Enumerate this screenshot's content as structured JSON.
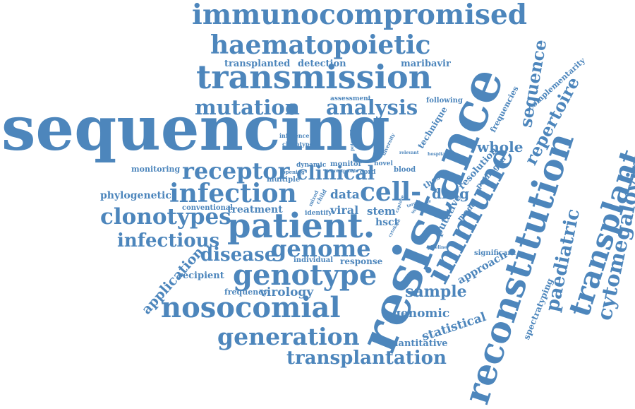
{
  "cloud": {
    "color": "#4d86bc",
    "words": [
      {
        "id": "sequencing",
        "text": "sequencing"
      },
      {
        "id": "resistance",
        "text": "resistance"
      },
      {
        "id": "immunocompromised",
        "text": "immunocompromised"
      },
      {
        "id": "haematopoietic",
        "text": "haematopoietic"
      },
      {
        "id": "transmission",
        "text": "transmission"
      },
      {
        "id": "patient",
        "text": "patient."
      },
      {
        "id": "reconstitution",
        "text": "reconstitution"
      },
      {
        "id": "immune",
        "text": "immune"
      },
      {
        "id": "transplant",
        "text": "transplant"
      },
      {
        "id": "genotype",
        "text": "genotype"
      },
      {
        "id": "nosocomial",
        "text": "nosocomial"
      },
      {
        "id": "infection",
        "text": "infection"
      },
      {
        "id": "clonotypes",
        "text": "clonotypes"
      },
      {
        "id": "genome",
        "text": "genome"
      },
      {
        "id": "cytomegalovirus",
        "text": "cytomegalovirus"
      },
      {
        "id": "generation",
        "text": "generation"
      },
      {
        "id": "transplantation",
        "text": "transplantation"
      },
      {
        "id": "mutation",
        "text": "mutation"
      },
      {
        "id": "analysis",
        "text": "analysis"
      },
      {
        "id": "receptor",
        "text": "receptor"
      },
      {
        "id": "clinical",
        "text": "clinical"
      },
      {
        "id": "cell",
        "text": "cell-"
      },
      {
        "id": "sequence",
        "text": "sequence"
      },
      {
        "id": "repertoire",
        "text": "repertoire"
      },
      {
        "id": "paediatric",
        "text": "paediatric"
      },
      {
        "id": "infectious",
        "text": "infectious"
      },
      {
        "id": "disease",
        "text": "disease"
      },
      {
        "id": "sample",
        "text": "sample"
      },
      {
        "id": "whole",
        "text": "whole"
      },
      {
        "id": "application",
        "text": "application"
      },
      {
        "id": "virology",
        "text": "virology"
      },
      {
        "id": "genomic",
        "text": "genomic"
      },
      {
        "id": "statistical",
        "text": "statistical"
      },
      {
        "id": "approach",
        "text": "approach"
      },
      {
        "id": "drug",
        "text": "drug"
      },
      {
        "id": "viral",
        "text": "viral"
      },
      {
        "id": "data",
        "text": "data"
      },
      {
        "id": "stem",
        "text": "stem"
      },
      {
        "id": "treatment",
        "text": "treatment"
      },
      {
        "id": "phylogenetic",
        "text": "phylogenetic"
      },
      {
        "id": "hsct",
        "text": "hsct"
      },
      {
        "id": "transplanted",
        "text": "transplanted"
      },
      {
        "id": "detection",
        "text": "detection"
      },
      {
        "id": "maribavir",
        "text": "maribavir"
      },
      {
        "id": "monitoring",
        "text": "monitoring"
      },
      {
        "id": "multiple",
        "text": "multiple"
      },
      {
        "id": "recipient",
        "text": "recipient"
      },
      {
        "id": "frequency",
        "text": "frequency"
      },
      {
        "id": "conventional",
        "text": "conventional"
      },
      {
        "id": "individual",
        "text": "individual"
      },
      {
        "id": "response",
        "text": "response"
      },
      {
        "id": "quantitative",
        "text": "quantitative"
      },
      {
        "id": "spectratyping",
        "text": "spectratyping"
      },
      {
        "id": "significant",
        "text": "significant"
      },
      {
        "id": "complementarity",
        "text": "complementarity"
      },
      {
        "id": "frequencies",
        "text": "frequencies"
      },
      {
        "id": "following",
        "text": "following"
      },
      {
        "id": "technique",
        "text": "technique"
      },
      {
        "id": "assessment",
        "text": "assessment"
      },
      {
        "id": "putative",
        "text": "putative"
      },
      {
        "id": "resolution",
        "text": "resolution"
      },
      {
        "id": "pathogen",
        "text": "pathogen"
      },
      {
        "id": "model",
        "text": "model"
      },
      {
        "id": "thesis",
        "text": "thesis"
      },
      {
        "id": "blood",
        "text": "blood"
      },
      {
        "id": "monitor",
        "text": "monitor"
      },
      {
        "id": "dynamic",
        "text": "dynamic"
      },
      {
        "id": "novel",
        "text": "novel"
      },
      {
        "id": "cord",
        "text": "cord"
      },
      {
        "id": "identify",
        "text": "identify"
      },
      {
        "id": "inference",
        "text": "inference"
      },
      {
        "id": "clonotype",
        "text": "clonotype"
      },
      {
        "id": "opening",
        "text": "opening"
      },
      {
        "id": "interest",
        "text": "interest"
      },
      {
        "id": "profile",
        "text": "profile"
      },
      {
        "id": "potential",
        "text": "potential"
      },
      {
        "id": "diversity",
        "text": "diversity"
      },
      {
        "id": "relevant",
        "text": "relevant"
      },
      {
        "id": "hospital",
        "text": "hospital"
      },
      {
        "id": "pipeline",
        "text": "pipeline"
      },
      {
        "id": "child",
        "text": "child"
      },
      {
        "id": "mixed",
        "text": "mixed"
      },
      {
        "id": "useful",
        "text": "useful"
      },
      {
        "id": "single",
        "text": "single"
      },
      {
        "id": "target",
        "text": "target"
      },
      {
        "id": "capture",
        "text": "capture"
      },
      {
        "id": "cytokine",
        "text": "cytokine"
      }
    ]
  }
}
